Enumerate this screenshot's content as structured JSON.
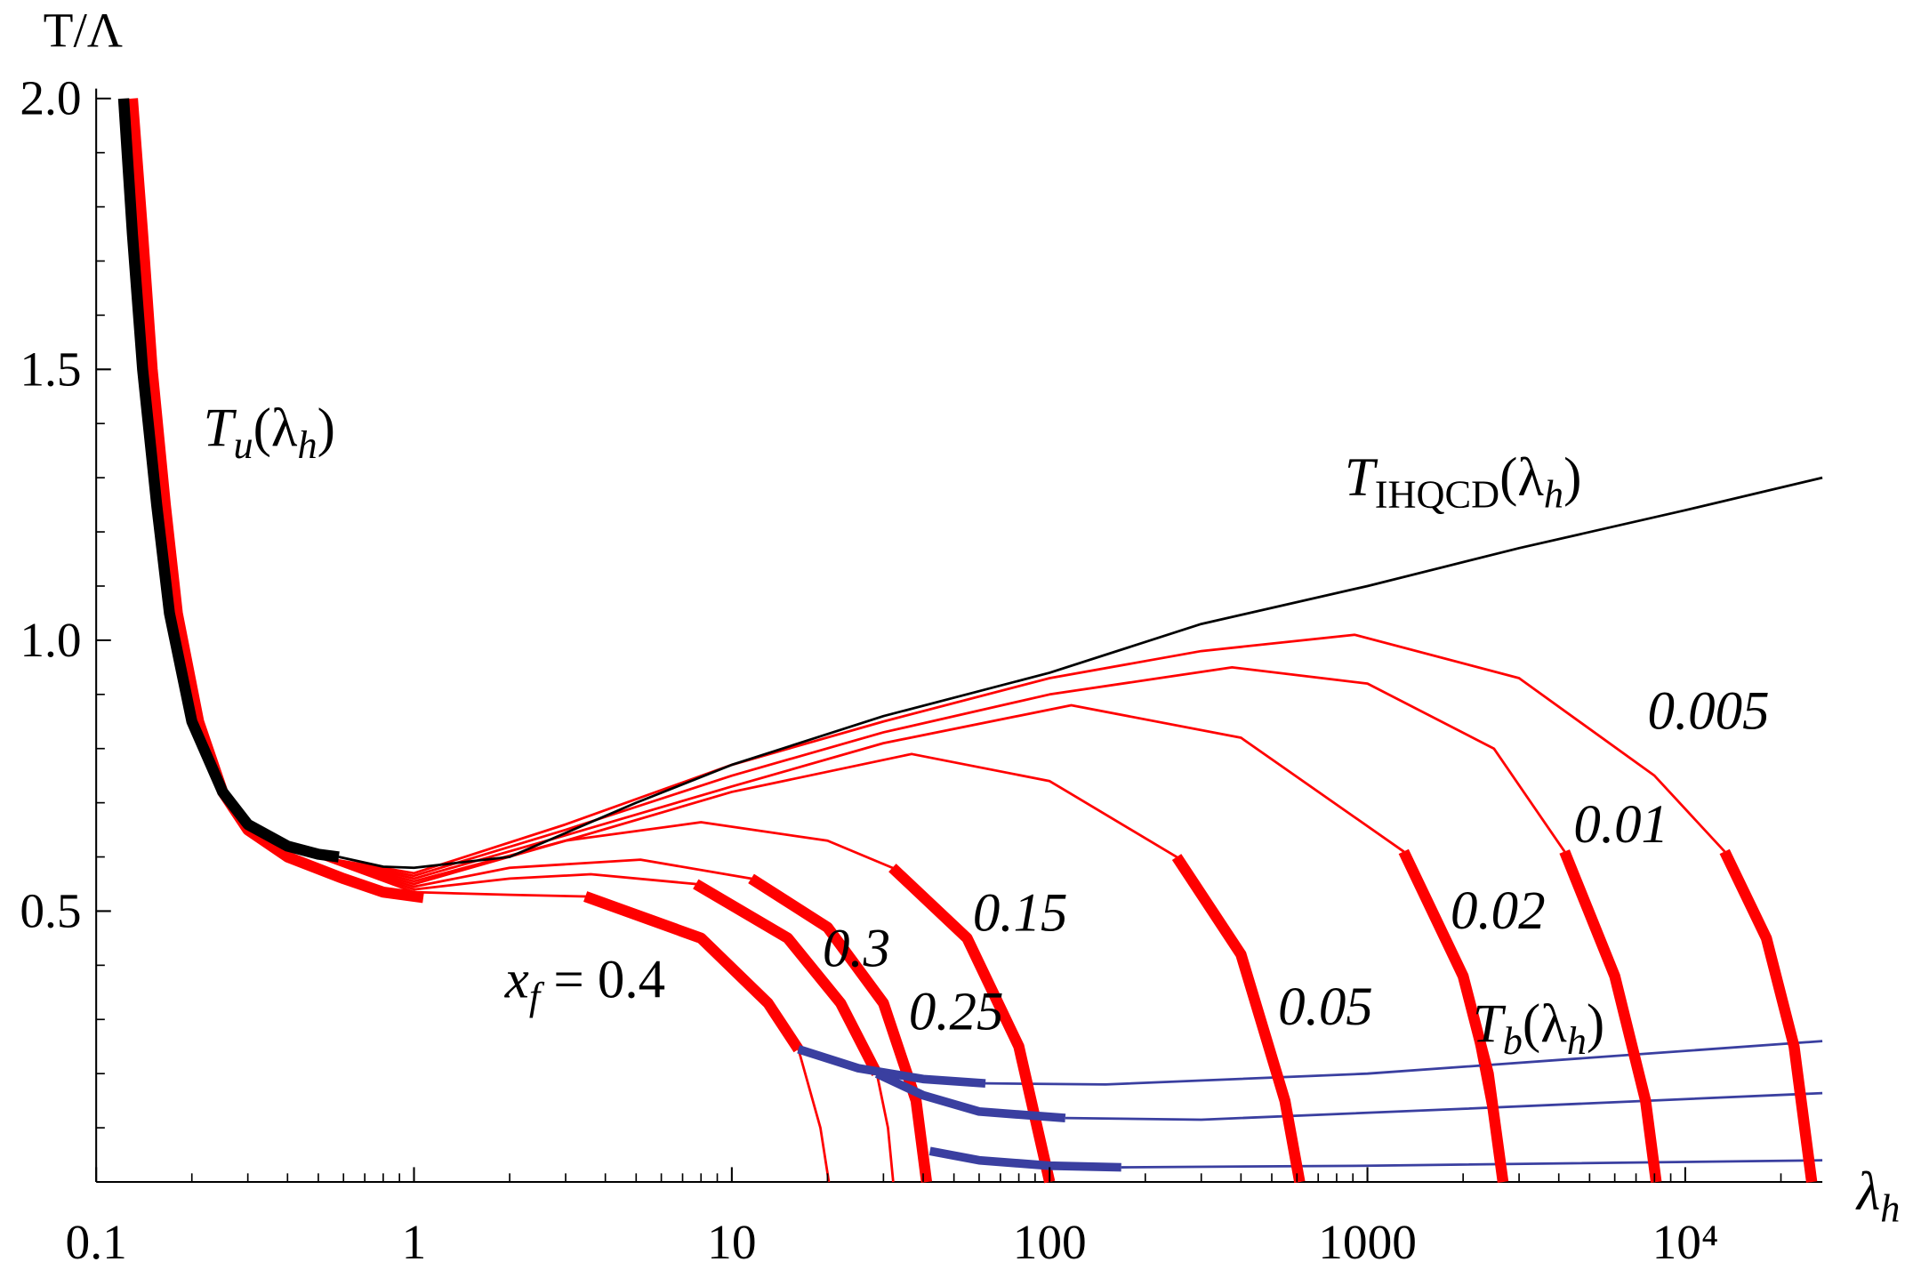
{
  "chart_data": {
    "type": "line",
    "xscale": "log",
    "ylabel": "T/Λ",
    "xlabel": [
      "λ",
      "h"
    ],
    "xlim": [
      0.1,
      27000
    ],
    "ylim": [
      0,
      2
    ],
    "xticks": [
      0.1,
      1,
      10,
      100,
      1000,
      {
        "value": 10000,
        "label": "10⁴"
      }
    ],
    "yticks": [
      0.5,
      {
        "value": 1,
        "label": "1.0"
      },
      1.5,
      {
        "value": 2,
        "label": "2.0"
      }
    ],
    "xminor": [
      0.2,
      0.3,
      0.4,
      0.5,
      0.6,
      0.7,
      0.8,
      0.9,
      2,
      3,
      4,
      5,
      6,
      7,
      8,
      9,
      20,
      30,
      40,
      50,
      60,
      70,
      80,
      90,
      200,
      300,
      400,
      500,
      600,
      700,
      800,
      900,
      2000,
      3000,
      4000,
      5000,
      6000,
      7000,
      8000,
      9000,
      20000
    ],
    "yminor": [
      0.1,
      0.2,
      0.3,
      0.4,
      0.6,
      0.7,
      0.8,
      0.9,
      1.1,
      1.2,
      1.3,
      1.4,
      1.6,
      1.7,
      1.8,
      1.9
    ],
    "annotations": [
      [
        "T",
        "u",
        "(λ",
        "h",
        ")"
      ],
      [
        "T",
        "IHQCD",
        "(λ",
        "h",
        ")"
      ],
      [
        "T",
        "b",
        "(λ",
        "h",
        ")"
      ],
      [
        "x",
        "f",
        " = 0.4"
      ],
      [
        "0.3"
      ],
      [
        "0.25"
      ],
      [
        "0.15"
      ],
      [
        "0.05"
      ],
      [
        "0.02"
      ],
      [
        "0.01"
      ],
      [
        "0.005"
      ]
    ],
    "series": [
      {
        "color": "#ff0000",
        "weight": "thin",
        "x": [
          0.5,
          1,
          3,
          10,
          30,
          100,
          300,
          912,
          3000,
          8000,
          13300,
          18000,
          22000,
          25000
        ],
        "y": [
          0.6,
          0.57,
          0.66,
          0.77,
          0.85,
          0.93,
          0.98,
          1.01,
          0.93,
          0.75,
          0.61,
          0.45,
          0.25,
          0
        ]
      },
      {
        "color": "#ff0000",
        "weight": "thin",
        "x": [
          0.5,
          1,
          3,
          10,
          30,
          100,
          375,
          1000,
          2500,
          4170,
          6000,
          7500,
          8100
        ],
        "y": [
          0.6,
          0.565,
          0.65,
          0.75,
          0.83,
          0.9,
          0.95,
          0.92,
          0.8,
          0.61,
          0.38,
          0.15,
          0
        ]
      },
      {
        "color": "#ff0000",
        "weight": "thin",
        "x": [
          0.5,
          1,
          3,
          10,
          30,
          117,
          400,
          1300,
          2000,
          2670
        ],
        "y": [
          0.6,
          0.56,
          0.64,
          0.73,
          0.81,
          0.88,
          0.82,
          0.61,
          0.38,
          0
        ]
      },
      {
        "color": "#ff0000",
        "weight": "thin",
        "x": [
          0.5,
          1,
          3,
          10,
          36.8,
          100,
          251,
          400,
          550,
          612
        ],
        "y": [
          0.6,
          0.555,
          0.63,
          0.72,
          0.79,
          0.74,
          0.6,
          0.42,
          0.15,
          0
        ]
      },
      {
        "color": "#ff0000",
        "weight": "thin",
        "x": [
          0.5,
          1,
          3,
          8,
          20,
          32,
          55,
          80,
          100
        ],
        "y": [
          0.6,
          0.55,
          0.63,
          0.664,
          0.63,
          0.58,
          0.45,
          0.25,
          0
        ]
      },
      {
        "color": "#ff0000",
        "weight": "thin",
        "x": [
          0.5,
          1,
          2,
          5.16,
          11.5,
          20,
          30,
          38,
          41
        ],
        "y": [
          0.6,
          0.545,
          0.58,
          0.595,
          0.56,
          0.47,
          0.33,
          0.15,
          0
        ]
      },
      {
        "color": "#ff0000",
        "weight": "thin",
        "x": [
          0.5,
          1,
          2,
          3.6,
          7.7,
          15,
          22,
          28.6,
          31,
          32.2
        ],
        "y": [
          0.6,
          0.54,
          0.56,
          0.568,
          0.55,
          0.45,
          0.33,
          0.2,
          0.1,
          0
        ]
      },
      {
        "color": "#ff0000",
        "weight": "thin",
        "x": [
          0.5,
          1,
          2,
          3.46,
          8,
          13,
          16.2,
          19,
          20.2
        ],
        "y": [
          0.6,
          0.535,
          0.53,
          0.527,
          0.45,
          0.33,
          0.245,
          0.1,
          0
        ]
      },
      {
        "color": "#3a3fa0",
        "weight": "thin",
        "x": [
          62.8,
          150,
          1000,
          27000
        ],
        "y": [
          0.182,
          0.18,
          0.2,
          0.26
        ]
      },
      {
        "color": "#3a3fa0",
        "weight": "thin",
        "x": [
          112,
          300,
          2000,
          27000
        ],
        "y": [
          0.118,
          0.115,
          0.135,
          0.164
        ]
      },
      {
        "color": "#3a3fa0",
        "weight": "thin",
        "x": [
          168,
          1000,
          27000
        ],
        "y": [
          0.027,
          0.03,
          0.04
        ]
      },
      {
        "color": "#ff0000",
        "weight": "thick",
        "x": [
          0.13,
          0.14,
          0.15,
          0.165,
          0.18,
          0.21,
          0.25,
          0.3,
          0.4,
          0.6,
          0.8,
          1.07
        ],
        "y": [
          2,
          1.75,
          1.5,
          1.25,
          1.05,
          0.85,
          0.72,
          0.65,
          0.6,
          0.56,
          0.535,
          0.525
        ]
      },
      {
        "color": "#000000",
        "weight": "thick",
        "x": [
          0.122,
          0.13,
          0.14,
          0.155,
          0.17,
          0.2,
          0.25,
          0.3,
          0.4,
          0.5,
          0.58
        ],
        "y": [
          2,
          1.75,
          1.5,
          1.25,
          1.05,
          0.85,
          0.72,
          0.66,
          0.62,
          0.605,
          0.6
        ]
      },
      {
        "color": "#000000",
        "weight": "thin",
        "x": [
          0.58,
          0.8,
          1,
          2,
          5,
          10,
          30,
          100,
          300,
          1000,
          3000,
          10000,
          27000
        ],
        "y": [
          0.6,
          0.582,
          0.58,
          0.6,
          0.7,
          0.77,
          0.86,
          0.94,
          1.03,
          1.1,
          1.17,
          1.24,
          1.3
        ]
      },
      {
        "color": "#ff0000",
        "weight": "thick",
        "x": [
          13300,
          18000,
          22000,
          25000
        ],
        "y": [
          0.61,
          0.45,
          0.25,
          0
        ]
      },
      {
        "color": "#ff0000",
        "weight": "thick",
        "x": [
          4170,
          6000,
          7500,
          8100
        ],
        "y": [
          0.61,
          0.38,
          0.15,
          0
        ]
      },
      {
        "color": "#ff0000",
        "weight": "thick",
        "x": [
          1300,
          2000,
          2400,
          2670
        ],
        "y": [
          0.61,
          0.38,
          0.2,
          0
        ]
      },
      {
        "color": "#ff0000",
        "weight": "thick",
        "x": [
          251,
          400,
          550,
          612
        ],
        "y": [
          0.6,
          0.42,
          0.15,
          0
        ]
      },
      {
        "color": "#ff0000",
        "weight": "thick",
        "x": [
          32,
          55,
          80,
          100
        ],
        "y": [
          0.58,
          0.45,
          0.25,
          0
        ]
      },
      {
        "color": "#ff0000",
        "weight": "thick",
        "x": [
          11.5,
          20,
          30,
          38,
          41
        ],
        "y": [
          0.56,
          0.47,
          0.33,
          0.15,
          0
        ]
      },
      {
        "color": "#ff0000",
        "weight": "thick",
        "x": [
          7.7,
          15,
          22,
          28.6
        ],
        "y": [
          0.55,
          0.45,
          0.33,
          0.2
        ]
      },
      {
        "color": "#ff0000",
        "weight": "thick",
        "x": [
          3.46,
          8,
          13,
          16.2
        ],
        "y": [
          0.527,
          0.45,
          0.33,
          0.245
        ]
      },
      {
        "color": "#3a3fa0",
        "weight": "thick",
        "x": [
          16.2,
          25,
          40,
          62.8
        ],
        "y": [
          0.245,
          0.21,
          0.19,
          0.182
        ]
      },
      {
        "color": "#3a3fa0",
        "weight": "thick",
        "x": [
          28.6,
          40,
          60,
          112
        ],
        "y": [
          0.2,
          0.16,
          0.13,
          0.118
        ]
      },
      {
        "color": "#3a3fa0",
        "weight": "thick",
        "x": [
          42,
          60,
          100,
          168
        ],
        "y": [
          0.057,
          0.04,
          0.03,
          0.027
        ]
      }
    ]
  }
}
